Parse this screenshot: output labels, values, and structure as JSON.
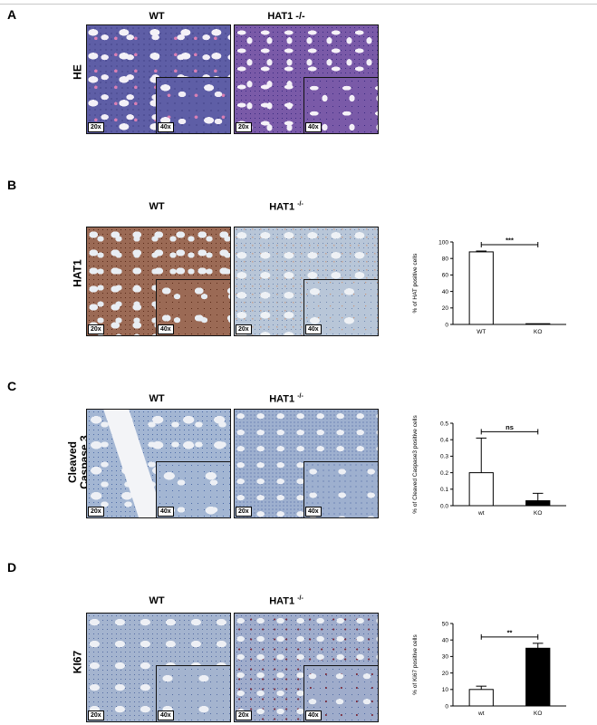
{
  "panels": [
    {
      "letter": "A",
      "row_label": "HE",
      "wt_label": "WT",
      "ko_label": "HAT1 -/-",
      "mag_low": "20x",
      "mag_high": "40x"
    },
    {
      "letter": "B",
      "row_label": "HAT1",
      "wt_label": "WT",
      "ko_label_main": "HAT1",
      "ko_label_sup": "-/-",
      "mag_low": "20x",
      "mag_high": "40x"
    },
    {
      "letter": "C",
      "row_label_line1": "Cleaved",
      "row_label_line2": "Caspase 3",
      "wt_label": "WT",
      "ko_label_main": "HAT1",
      "ko_label_sup": "-/-",
      "mag_low": "20x",
      "mag_high": "40x"
    },
    {
      "letter": "D",
      "row_label": "KI67",
      "wt_label": "WT",
      "ko_label_main": "HAT1",
      "ko_label_sup": "-/-",
      "mag_low": "20x",
      "mag_high": "40x"
    }
  ],
  "chart_data": [
    {
      "type": "bar",
      "panel": "B",
      "categories": [
        "WT",
        "KO"
      ],
      "values": [
        88,
        0
      ],
      "errors": [
        1,
        0
      ],
      "bar_colors": [
        "#ffffff",
        "#ffffff"
      ],
      "ylabel": "% of HAT positive cells",
      "ylim": [
        0,
        100
      ],
      "yticks": [
        0,
        20,
        40,
        60,
        80,
        100
      ],
      "significance": "***"
    },
    {
      "type": "bar",
      "panel": "C",
      "categories": [
        "wt",
        "KO"
      ],
      "values": [
        0.2,
        0.03
      ],
      "errors": [
        0.21,
        0.045
      ],
      "bar_colors": [
        "#ffffff",
        "#000000"
      ],
      "ylabel": "% of Cleaved Caspase3 positive cells",
      "ylim": [
        0,
        0.5
      ],
      "yticks": [
        0.0,
        0.1,
        0.2,
        0.3,
        0.4,
        0.5
      ],
      "significance": "ns"
    },
    {
      "type": "bar",
      "panel": "D",
      "categories": [
        "wt",
        "KO"
      ],
      "values": [
        10,
        35
      ],
      "errors": [
        2,
        3
      ],
      "bar_colors": [
        "#ffffff",
        "#000000"
      ],
      "ylabel": "% of Ki67 positive cells",
      "ylim": [
        0,
        50
      ],
      "yticks": [
        0,
        10,
        20,
        30,
        40,
        50
      ],
      "significance": "**"
    }
  ]
}
